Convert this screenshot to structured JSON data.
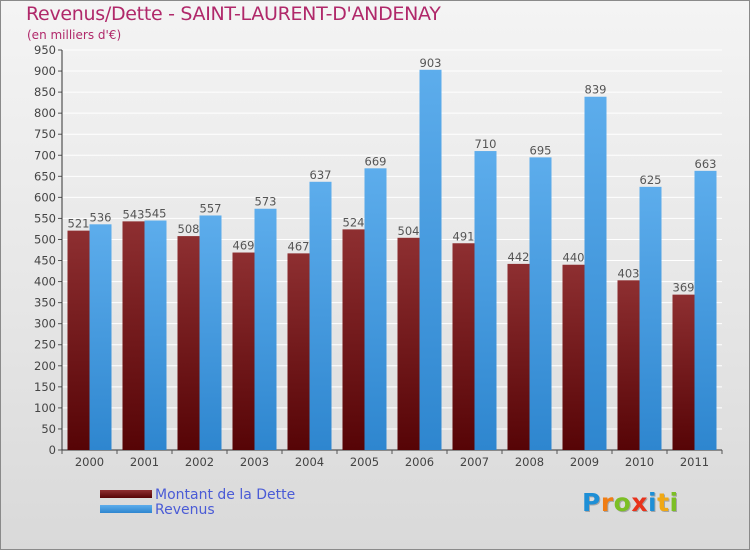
{
  "header": {
    "title": "Revenus/Dette - SAINT-LAURENT-D'ANDENAY",
    "subtitle": "(en milliers d'€)"
  },
  "legend": {
    "items": [
      {
        "label": "Montant de la Dette",
        "color": "#6e1418"
      },
      {
        "label": "Revenus",
        "color": "#3c9ae2"
      }
    ]
  },
  "logo": {
    "text": "Proxiti",
    "letters": [
      {
        "ch": "P",
        "color": "#1e8fd6"
      },
      {
        "ch": "r",
        "color": "#f07d14"
      },
      {
        "ch": "o",
        "color": "#7cbf25"
      },
      {
        "ch": "x",
        "color": "#e8331c"
      },
      {
        "ch": "i",
        "color": "#1e8fd6"
      },
      {
        "ch": "t",
        "color": "#f0a814"
      },
      {
        "ch": "i",
        "color": "#7cbf25"
      }
    ]
  },
  "chart_data": {
    "type": "bar",
    "title": "Revenus/Dette - SAINT-LAURENT-D'ANDENAY",
    "subtitle": "(en milliers d'€)",
    "categories": [
      "2000",
      "2001",
      "2002",
      "2003",
      "2004",
      "2005",
      "2006",
      "2007",
      "2008",
      "2009",
      "2010",
      "2011"
    ],
    "series": [
      {
        "name": "Montant de la Dette",
        "color": "#6e1418",
        "values": [
          521,
          543,
          508,
          469,
          467,
          524,
          504,
          491,
          442,
          440,
          403,
          369
        ]
      },
      {
        "name": "Revenus",
        "color": "#3c9ae2",
        "values": [
          536,
          545,
          557,
          573,
          637,
          669,
          903,
          710,
          695,
          839,
          625,
          663
        ]
      }
    ],
    "ylim": [
      0,
      950
    ],
    "yticks": [
      0,
      50,
      100,
      150,
      200,
      250,
      300,
      350,
      400,
      450,
      500,
      550,
      600,
      650,
      700,
      750,
      800,
      850,
      900,
      950
    ],
    "grid": true,
    "legend_position": "bottom-left"
  }
}
